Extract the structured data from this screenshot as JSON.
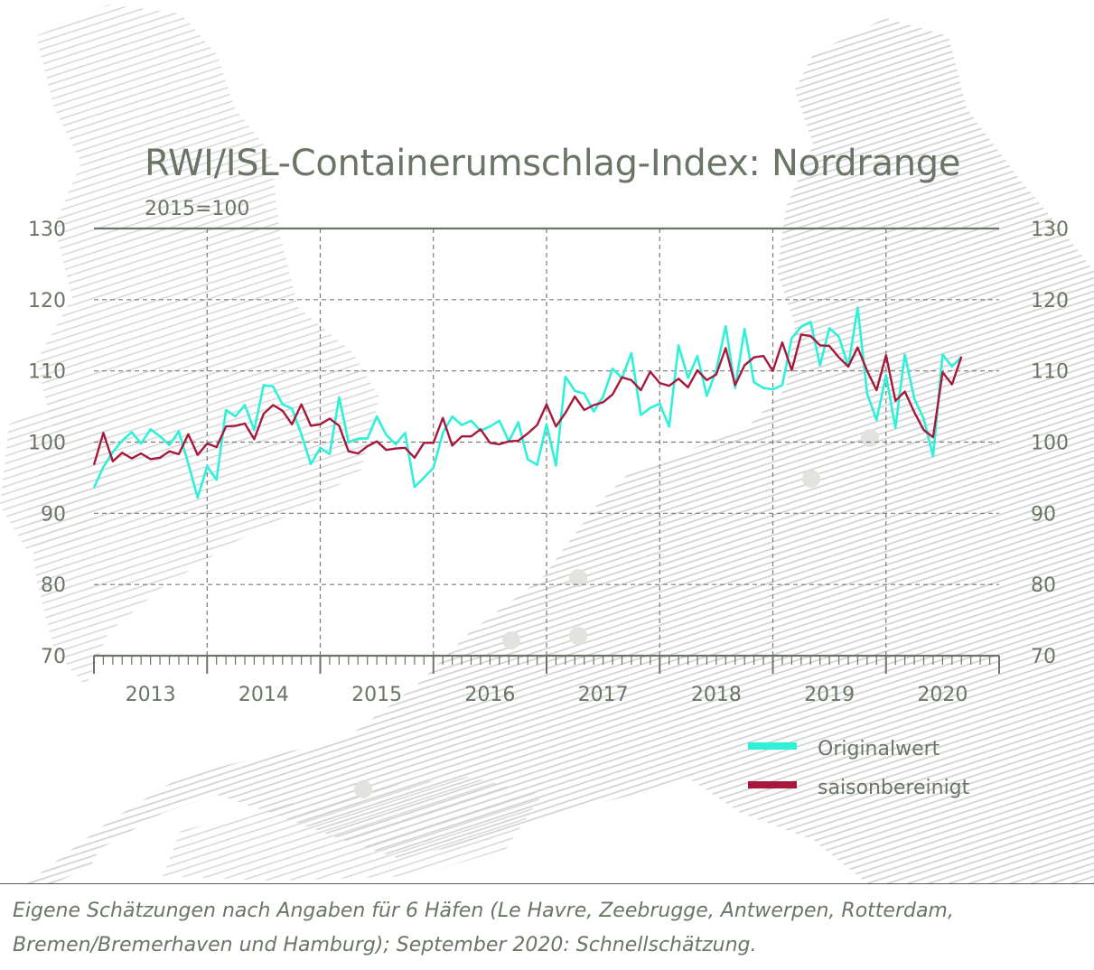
{
  "header": {
    "title": "RWI/ISL-Containerumschlag-Index: Nordrange",
    "subtitle": "2015=100"
  },
  "legend": {
    "items": [
      {
        "label": "Originalwert",
        "color": "#2ff0d8"
      },
      {
        "label": "saisonbereinigt",
        "color": "#a6183c"
      }
    ]
  },
  "footnote": "Eigene Schätzungen nach Angaben für 6 Häfen (Le Havre, Zeebrugge, Antwerpen, Rotterdam, Bremen/Bremerhaven und Hamburg); September 2020: Schnellschätzung.",
  "chart_data": {
    "type": "line",
    "title": "RWI/ISL-Containerumschlag-Index: Nordrange",
    "subtitle": "2015=100",
    "ylim": [
      70,
      130
    ],
    "yticks": [
      70,
      80,
      90,
      100,
      110,
      120,
      130
    ],
    "xlabels": [
      "2013",
      "2014",
      "2015",
      "2016",
      "2017",
      "2018",
      "2019",
      "2020"
    ],
    "x_start": "2013-01",
    "grid": true,
    "legend_position": "bottom-right",
    "series": [
      {
        "name": "Originalwert",
        "color": "#2ff0d8",
        "values": [
          93.6,
          96.5,
          98.6,
          100.2,
          101.4,
          99.8,
          101.8,
          100.8,
          99.6,
          101.5,
          97.0,
          92.2,
          96.6,
          94.7,
          104.5,
          103.6,
          105.2,
          101.7,
          108.0,
          107.8,
          105.3,
          104.7,
          101.1,
          96.9,
          99.2,
          98.3,
          106.3,
          100.0,
          100.5,
          100.5,
          103.6,
          101.0,
          99.7,
          101.3,
          93.7,
          95.0,
          96.4,
          101.3,
          103.6,
          102.4,
          103.0,
          101.6,
          102.2,
          103.0,
          100.1,
          102.8,
          97.6,
          96.8,
          102.5,
          96.7,
          109.2,
          107.2,
          106.8,
          104.3,
          106.4,
          110.3,
          109.0,
          112.5,
          103.8,
          104.8,
          105.4,
          102.2,
          113.6,
          109.0,
          112.1,
          106.5,
          110.1,
          116.3,
          107.6,
          115.9,
          108.4,
          107.6,
          107.4,
          108.0,
          114.6,
          116.2,
          116.9,
          110.8,
          116.0,
          114.8,
          110.6,
          118.9,
          106.8,
          103.1,
          109.4,
          102.0,
          112.3,
          106.1,
          103.3,
          98.0,
          112.3,
          110.6,
          112.0
        ]
      },
      {
        "name": "saisonbereinigt",
        "color": "#a6183c",
        "values": [
          96.8,
          101.3,
          97.3,
          98.5,
          97.7,
          98.4,
          97.6,
          97.8,
          98.7,
          98.3,
          101.1,
          98.2,
          99.8,
          99.3,
          102.2,
          102.3,
          102.6,
          100.4,
          104.0,
          105.2,
          104.4,
          102.5,
          105.3,
          102.3,
          102.5,
          103.3,
          102.3,
          98.7,
          98.4,
          99.4,
          100.1,
          98.9,
          99.1,
          99.2,
          97.8,
          99.9,
          99.9,
          103.4,
          99.5,
          100.8,
          100.8,
          101.8,
          99.9,
          99.7,
          100.1,
          100.2,
          101.2,
          102.4,
          105.3,
          102.2,
          104.1,
          106.4,
          104.5,
          105.2,
          105.6,
          106.7,
          109.1,
          108.7,
          107.3,
          109.9,
          108.3,
          107.9,
          108.9,
          107.7,
          110.1,
          108.7,
          109.5,
          113.2,
          108.0,
          110.8,
          111.9,
          112.1,
          110.0,
          114.0,
          110.1,
          115.1,
          114.9,
          113.6,
          113.5,
          111.9,
          110.6,
          113.3,
          110.0,
          107.3,
          112.2,
          105.8,
          107.1,
          104.2,
          101.7,
          100.7,
          109.8,
          108.1,
          112.0
        ]
      }
    ]
  }
}
